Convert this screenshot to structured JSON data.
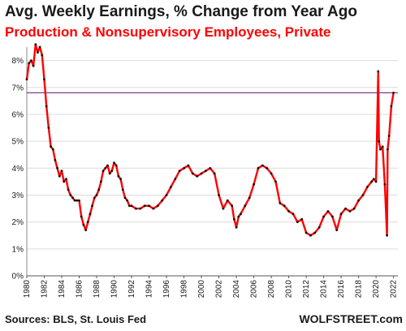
{
  "header": {
    "title": "Avg. Weekly Earnings, % Change from Year Ago",
    "subtitle": "Production & Nonsupervisory  Employees, Private"
  },
  "footer": {
    "source": "Sources: BLS, St. Louis Fed",
    "brand": "WOLFSTREET.com"
  },
  "chart_data": {
    "type": "line",
    "title": "Avg. Weekly Earnings, % Change from Year Ago",
    "subtitle": "Production & Nonsupervisory  Employees, Private",
    "xlabel": "",
    "ylabel": "",
    "xlim": [
      1980,
      2022.5
    ],
    "ylim": [
      0,
      8.5
    ],
    "x_ticks": [
      "1980",
      "1982",
      "1984",
      "1986",
      "1988",
      "1990",
      "1992",
      "1994",
      "1996",
      "1998",
      "2000",
      "2002",
      "2004",
      "2006",
      "2008",
      "2010",
      "2012",
      "2014",
      "2016",
      "2018",
      "2020",
      "2022"
    ],
    "y_ticks": [
      "0%",
      "1%",
      "2%",
      "3%",
      "4%",
      "5%",
      "6%",
      "7%",
      "8%"
    ],
    "reference_line": 6.8,
    "series_color": "#ff0000",
    "marker_color": "#111111",
    "reference_color": "#7a3a8a",
    "grid": "horizontal",
    "series": [
      {
        "x": [
          1980.0,
          1980.25,
          1980.5,
          1980.75,
          1981.0,
          1981.25,
          1981.5,
          1981.75,
          1982.0,
          1982.25,
          1982.5,
          1982.75,
          1983.0,
          1983.25,
          1983.5,
          1983.75,
          1984.0,
          1984.25,
          1984.5,
          1984.75,
          1985.0,
          1985.25,
          1985.5,
          1985.75,
          1986.0,
          1986.25,
          1986.5,
          1986.75,
          1987.0,
          1987.25,
          1987.5,
          1987.75,
          1988.0,
          1988.25,
          1988.5,
          1988.75,
          1989.0,
          1989.25,
          1989.5,
          1989.75,
          1990.0,
          1990.25,
          1990.5,
          1990.75,
          1991.0,
          1991.25,
          1991.5,
          1991.75,
          1992.0,
          1992.5,
          1993.0,
          1993.5,
          1994.0,
          1994.5,
          1995.0,
          1995.5,
          1996.0,
          1996.5,
          1997.0,
          1997.5,
          1998.0,
          1998.5,
          1999.0,
          1999.5,
          2000.0,
          2000.5,
          2001.0,
          2001.5,
          2002.0,
          2002.5,
          2003.0,
          2003.5,
          2003.75,
          2004.0,
          2004.25,
          2004.5,
          2005.0,
          2005.5,
          2006.0,
          2006.5,
          2007.0,
          2007.5,
          2008.0,
          2008.5,
          2009.0,
          2009.5,
          2010.0,
          2010.5,
          2011.0,
          2011.5,
          2012.0,
          2012.5,
          2013.0,
          2013.5,
          2014.0,
          2014.5,
          2015.0,
          2015.5,
          2016.0,
          2016.5,
          2017.0,
          2017.5,
          2018.0,
          2018.5,
          2019.0,
          2019.5,
          2019.75,
          2020.0,
          2020.25,
          2020.33,
          2020.5,
          2020.75,
          2021.0,
          2021.25,
          2021.33,
          2021.5,
          2021.75,
          2022.0
        ],
        "values": [
          7.3,
          7.9,
          8.0,
          7.8,
          8.6,
          8.3,
          8.5,
          8.2,
          7.3,
          6.3,
          5.5,
          4.8,
          4.7,
          4.3,
          4.0,
          3.7,
          3.9,
          3.5,
          3.6,
          3.2,
          3.0,
          2.9,
          2.8,
          2.8,
          2.8,
          2.2,
          1.9,
          1.7,
          2.0,
          2.3,
          2.6,
          2.9,
          3.0,
          3.2,
          3.5,
          3.9,
          4.0,
          4.1,
          3.8,
          3.9,
          4.2,
          4.1,
          3.7,
          3.6,
          3.2,
          2.9,
          2.8,
          2.6,
          2.6,
          2.5,
          2.5,
          2.6,
          2.6,
          2.5,
          2.6,
          2.8,
          3.0,
          3.3,
          3.6,
          3.9,
          4.0,
          4.1,
          3.8,
          3.7,
          3.8,
          3.9,
          4.0,
          3.8,
          3.0,
          2.5,
          2.8,
          2.6,
          2.1,
          1.8,
          2.2,
          2.3,
          2.6,
          2.9,
          3.4,
          4.0,
          4.1,
          4.0,
          3.8,
          3.5,
          2.7,
          2.6,
          2.4,
          2.3,
          2.0,
          2.1,
          1.6,
          1.5,
          1.6,
          1.8,
          2.2,
          2.4,
          2.2,
          1.7,
          2.3,
          2.5,
          2.4,
          2.5,
          2.8,
          3.0,
          3.3,
          3.5,
          3.6,
          3.5,
          7.6,
          5.0,
          4.7,
          4.8,
          3.4,
          1.5,
          4.7,
          5.2,
          6.3,
          6.8
        ]
      }
    ]
  }
}
